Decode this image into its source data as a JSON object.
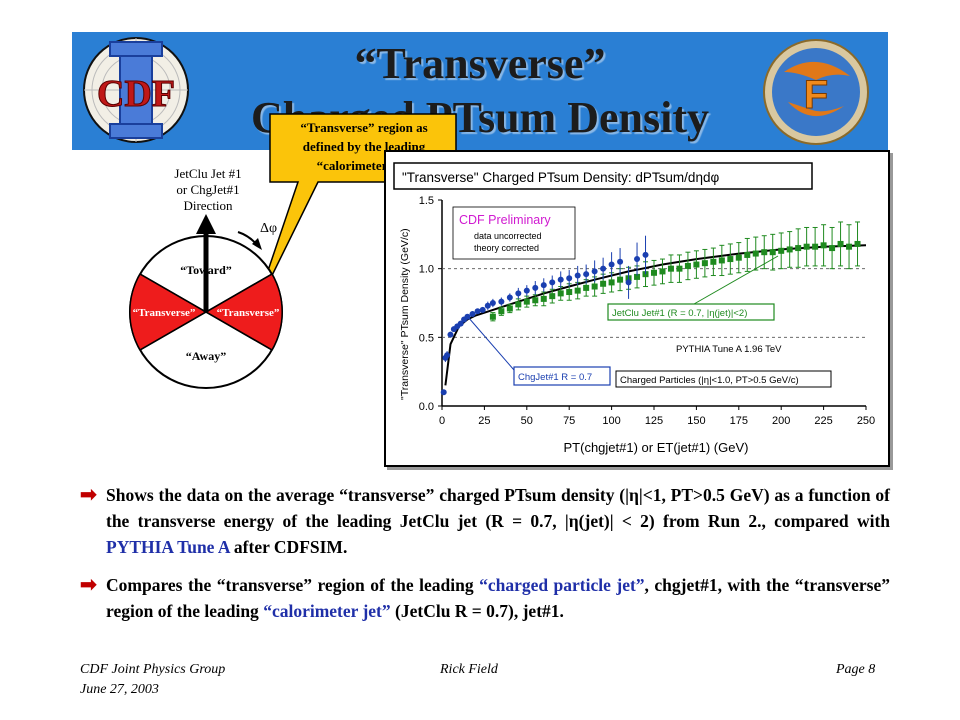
{
  "header": {
    "title_line1": "“Transverse”",
    "title_line2": "Charged PTsum Density",
    "left_logo_text": "CDF",
    "right_logo_text": "F"
  },
  "callout": {
    "line1": "“Transverse” region as",
    "line2": "defined by the leading",
    "line3": "“calorimeter jet”"
  },
  "diagram": {
    "direction_label_line1": "JetClu Jet #1",
    "direction_label_line2": "or ChgJet#1",
    "direction_label_line3": "Direction",
    "delta_phi": "Δφ",
    "toward": "“Toward”",
    "transverse_left": "“Transverse”",
    "transverse_right": "“Transverse”",
    "away": "“Away”"
  },
  "chart_data": {
    "type": "scatter",
    "title": "\"Transverse\" Charged PTsum Density: dPTsum/dηdφ",
    "preliminary": "CDF Preliminary",
    "note_line1": "data uncorrected",
    "note_line2": "theory corrected",
    "xlabel": "PT(chgjet#1) or ET(jet#1)  (GeV)",
    "ylabel": "\"Transverse\" PTsum Density (GeV/c)",
    "xlim": [
      0,
      250
    ],
    "ylim": [
      0,
      1.5
    ],
    "xticks": [
      "0",
      "25",
      "50",
      "75",
      "100",
      "125",
      "150",
      "175",
      "200",
      "225",
      "250"
    ],
    "yticks": [
      "0.0",
      "0.5",
      "1.0",
      "1.5"
    ],
    "dashed_y": [
      0.5,
      1.0
    ],
    "annotations": {
      "jetclu_label": "JetClu Jet#1 (R = 0.7, |η(jet)|<2)",
      "chgjet_label": "ChgJet#1 R = 0.7",
      "pythia_label": "PYTHIA Tune A 1.96 TeV",
      "charged_label": "Charged Particles (|η|<1.0, PT>0.5 GeV/c)"
    },
    "colors": {
      "chgjet": "#1a3fb0",
      "jetclu": "#1f8a1f",
      "pythia": "#000000"
    },
    "series": [
      {
        "name": "ChgJet#1 R = 0.7",
        "x": [
          1,
          2,
          3,
          5,
          7,
          9,
          11,
          13,
          15,
          18,
          21,
          24,
          27,
          30,
          35,
          40,
          45,
          50,
          55,
          60,
          65,
          70,
          75,
          80,
          85,
          90,
          95,
          100,
          105,
          110,
          115,
          120
        ],
        "values": [
          0.1,
          0.35,
          0.37,
          0.52,
          0.56,
          0.58,
          0.6,
          0.63,
          0.65,
          0.67,
          0.69,
          0.7,
          0.73,
          0.75,
          0.76,
          0.79,
          0.82,
          0.84,
          0.86,
          0.88,
          0.9,
          0.92,
          0.93,
          0.95,
          0.96,
          0.98,
          1.0,
          1.03,
          1.05,
          0.9,
          1.07,
          1.1
        ],
        "errors": [
          0.02,
          0.03,
          0.03,
          0.02,
          0.02,
          0.02,
          0.02,
          0.02,
          0.02,
          0.02,
          0.02,
          0.02,
          0.03,
          0.03,
          0.03,
          0.03,
          0.04,
          0.04,
          0.05,
          0.05,
          0.05,
          0.06,
          0.06,
          0.07,
          0.07,
          0.08,
          0.08,
          0.09,
          0.1,
          0.12,
          0.12,
          0.14
        ]
      },
      {
        "name": "JetClu Jet#1 (R = 0.7, |η(jet)|<2)",
        "x": [
          30,
          35,
          40,
          45,
          50,
          55,
          60,
          65,
          70,
          75,
          80,
          85,
          90,
          95,
          100,
          105,
          110,
          115,
          120,
          125,
          130,
          135,
          140,
          145,
          150,
          155,
          160,
          165,
          170,
          175,
          180,
          185,
          190,
          195,
          200,
          205,
          210,
          215,
          220,
          225,
          230,
          235,
          240,
          245
        ],
        "values": [
          0.65,
          0.69,
          0.71,
          0.74,
          0.76,
          0.77,
          0.78,
          0.8,
          0.82,
          0.83,
          0.84,
          0.86,
          0.87,
          0.89,
          0.9,
          0.92,
          0.93,
          0.94,
          0.96,
          0.97,
          0.98,
          1.0,
          1.0,
          1.02,
          1.03,
          1.04,
          1.05,
          1.06,
          1.07,
          1.08,
          1.1,
          1.11,
          1.12,
          1.12,
          1.13,
          1.14,
          1.15,
          1.16,
          1.16,
          1.17,
          1.15,
          1.18,
          1.16,
          1.18
        ],
        "errors": [
          0.03,
          0.03,
          0.03,
          0.04,
          0.04,
          0.04,
          0.05,
          0.05,
          0.05,
          0.06,
          0.06,
          0.06,
          0.07,
          0.07,
          0.07,
          0.08,
          0.08,
          0.08,
          0.09,
          0.09,
          0.09,
          0.1,
          0.1,
          0.1,
          0.1,
          0.1,
          0.1,
          0.11,
          0.11,
          0.11,
          0.12,
          0.12,
          0.12,
          0.13,
          0.13,
          0.13,
          0.14,
          0.14,
          0.14,
          0.15,
          0.15,
          0.16,
          0.16,
          0.16
        ]
      },
      {
        "name": "PYTHIA Tune A 1.96 TeV",
        "x": [
          2,
          5,
          10,
          15,
          20,
          30,
          40,
          50,
          60,
          75,
          90,
          110,
          130,
          150,
          175,
          200,
          225,
          250
        ],
        "values": [
          0.15,
          0.45,
          0.58,
          0.63,
          0.66,
          0.7,
          0.74,
          0.78,
          0.82,
          0.87,
          0.92,
          0.98,
          1.03,
          1.07,
          1.11,
          1.14,
          1.16,
          1.17
        ]
      }
    ]
  },
  "bullets": [
    {
      "arrow": "➡",
      "text_a": "Shows the data on the average “transverse” charged PTsum density (|η|<1, PT>0.5 GeV) as a function of the transverse energy of the leading JetClu jet (R = 0.7, |η(jet)| < 2) from Run 2., compared with ",
      "text_blue": "PYTHIA Tune A",
      "text_b": " after CDFSIM."
    },
    {
      "arrow": "➡",
      "text_a": "Compares the “transverse” region of the leading ",
      "text_blue": "“charged particle jet”",
      "text_b": ", chgjet#1, with the “transverse” region of the leading ",
      "text_blue2": "“calorimeter jet”",
      "text_c": " (JetClu R = 0.7), jet#1."
    }
  ],
  "footer": {
    "left_line1": "CDF Joint Physics Group",
    "left_line2": "June 27, 2003",
    "center": "Rick Field",
    "right": "Page 8"
  }
}
